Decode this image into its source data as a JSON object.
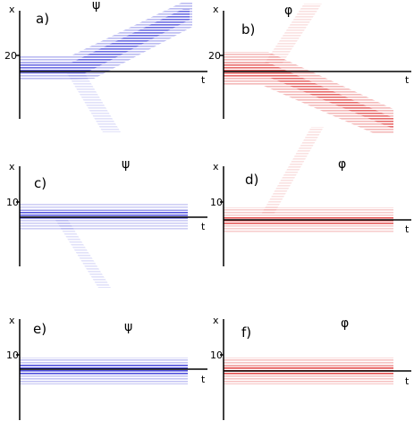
{
  "panels": [
    {
      "label": "a)",
      "field": "ψ",
      "x_axis": "x",
      "t_axis": "t",
      "tick": "20"
    },
    {
      "label": "b)",
      "field": "φ",
      "x_axis": "x",
      "t_axis": "t",
      "tick": "20"
    },
    {
      "label": "c)",
      "field": "ψ",
      "x_axis": "x",
      "t_axis": "t",
      "tick": "10"
    },
    {
      "label": "d)",
      "field": "φ",
      "x_axis": "x",
      "t_axis": "t",
      "tick": "10"
    },
    {
      "label": "e)",
      "field": "ψ",
      "x_axis": "x",
      "t_axis": "t",
      "tick": "10"
    },
    {
      "label": "f)",
      "field": "φ",
      "x_axis": "x",
      "t_axis": "t",
      "tick": "10"
    }
  ]
}
